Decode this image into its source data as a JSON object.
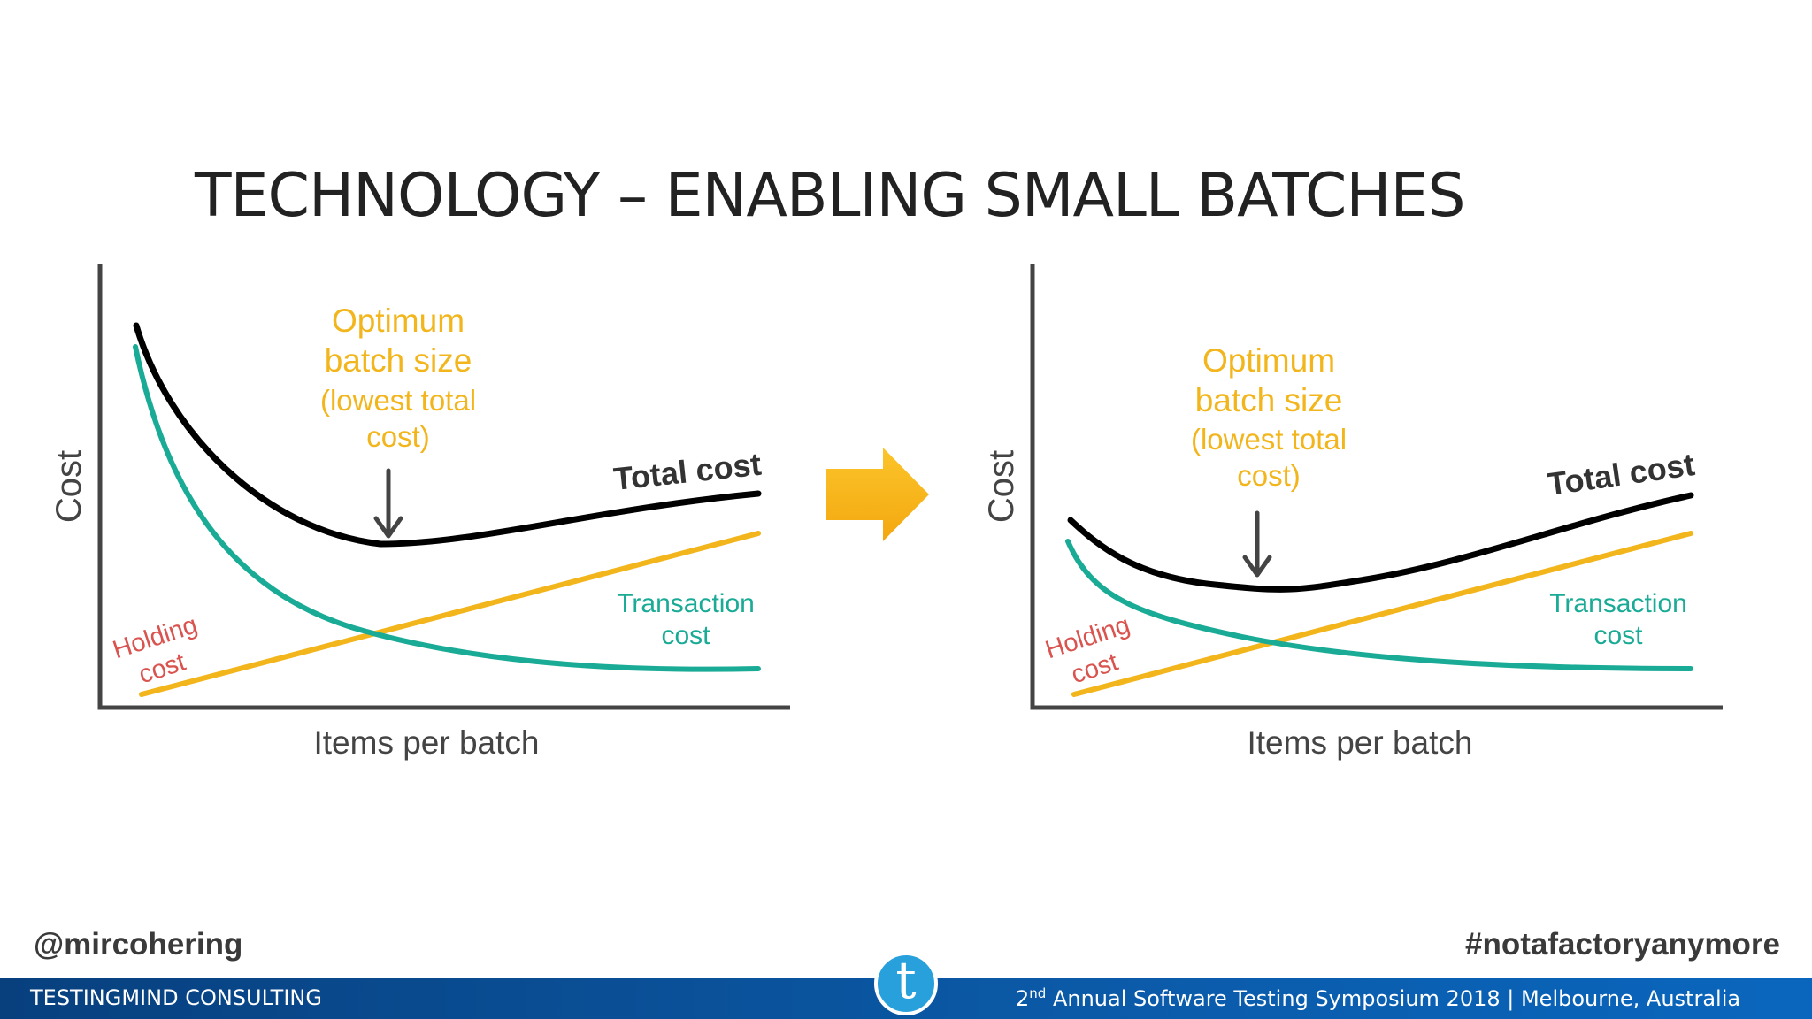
{
  "slide": {
    "title": "TECHNOLOGY – ENABLING SMALL BATCHES"
  },
  "diagrams": [
    {
      "y_label": "Cost",
      "x_label": "Items per batch",
      "optimum_lines": [
        "Optimum",
        "batch size",
        "(lowest total",
        "cost)"
      ],
      "total_cost_label": "Total cost",
      "transaction_cost_lines": [
        "Transaction",
        "cost"
      ],
      "holding_cost_lines": [
        "Holding",
        "cost"
      ]
    },
    {
      "y_label": "Cost",
      "x_label": "Items per batch",
      "optimum_lines": [
        "Optimum",
        "batch size",
        "(lowest total",
        "cost)"
      ],
      "total_cost_label": "Total cost",
      "transaction_cost_lines": [
        "Transaction",
        "cost"
      ],
      "holding_cost_lines": [
        "Holding",
        "cost"
      ]
    }
  ],
  "footer": {
    "handle": "@mircohering",
    "hashtag": "#notafactoryanymore",
    "company": "TESTINGMIND CONSULTING",
    "event_ordinal": "2",
    "event_ordinal_suffix": "nd",
    "event_text": " Annual Software Testing Symposium 2018 | Melbourne, Australia",
    "logo_letter": "t"
  },
  "colors": {
    "total_cost": "#000000",
    "transaction_cost": "#1aab96",
    "holding_cost": "#f2b51b",
    "holding_label": "#d9534f",
    "optimum_label": "#f2b51b",
    "arrow": "#f7b318",
    "footer_bar": "#0b5aa8",
    "logo": "#28a0dc"
  }
}
